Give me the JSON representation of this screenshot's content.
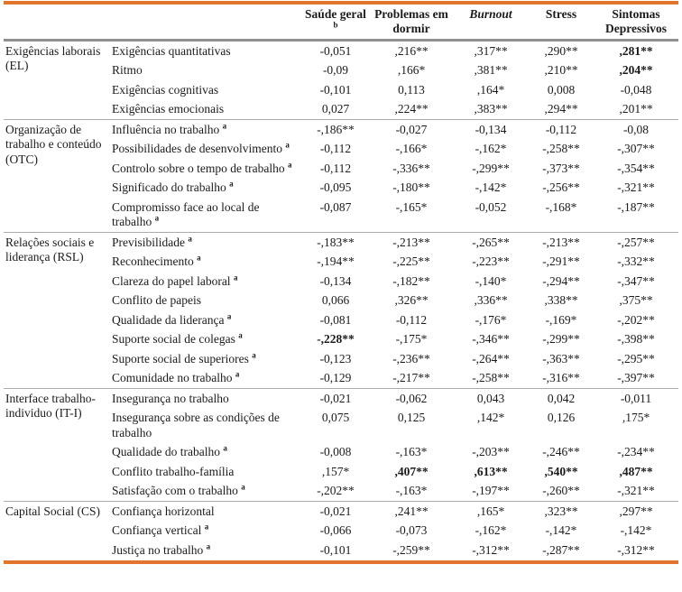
{
  "colors": {
    "accent_rule": "#E2752E",
    "header_rule": "#8f8f8f",
    "group_rule": "#ababab",
    "text": "#1b1b1b"
  },
  "table": {
    "columns": [
      {
        "label": "Saúde geral",
        "sup": "b",
        "italic": false
      },
      {
        "label": "Problemas em dormir",
        "sup": "",
        "italic": false
      },
      {
        "label": "Burnout",
        "sup": "",
        "italic": true
      },
      {
        "label": "Stress",
        "sup": "",
        "italic": false
      },
      {
        "label": "Sintomas Depressivos",
        "sup": "",
        "italic": false
      }
    ],
    "groups": [
      {
        "label": "Exigências laborais (EL)",
        "rows": [
          {
            "label": "Exigências quantitativas",
            "sup": "",
            "values": [
              "-0,051",
              ",216**",
              ",317**",
              ",290**",
              ",281**"
            ],
            "bold": [
              false,
              false,
              false,
              false,
              true
            ]
          },
          {
            "label": "Ritmo",
            "sup": "",
            "values": [
              "-0,09",
              ",166*",
              ",381**",
              ",210**",
              ",204**"
            ],
            "bold": [
              false,
              false,
              false,
              false,
              true
            ]
          },
          {
            "label": "Exigências cognitivas",
            "sup": "",
            "values": [
              "-0,101",
              "0,113",
              ",164*",
              "0,008",
              "-0,048"
            ],
            "bold": [
              false,
              false,
              false,
              false,
              false
            ]
          },
          {
            "label": "Exigências emocionais",
            "sup": "",
            "values": [
              "0,027",
              ",224**",
              ",383**",
              ",294**",
              ",201**"
            ],
            "bold": [
              false,
              false,
              false,
              false,
              false
            ]
          }
        ]
      },
      {
        "label": "Organização de trabalho e conteúdo (OTC)",
        "rows": [
          {
            "label": "Influência no trabalho",
            "sup": "a",
            "values": [
              "-,186**",
              "-0,027",
              "-0,134",
              "-0,112",
              "-0,08"
            ],
            "bold": [
              false,
              false,
              false,
              false,
              false
            ]
          },
          {
            "label": "Possibilidades de desenvolvimento",
            "sup": "a",
            "values": [
              "-0,112",
              "-,166*",
              "-,162*",
              "-,258**",
              "-,307**"
            ],
            "bold": [
              false,
              false,
              false,
              false,
              false
            ]
          },
          {
            "label": "Controlo sobre o tempo de trabalho",
            "sup": "a",
            "values": [
              "-0,112",
              "-,336**",
              "-,299**",
              "-,373**",
              "-,354**"
            ],
            "bold": [
              false,
              false,
              false,
              false,
              false
            ]
          },
          {
            "label": "Significado do trabalho",
            "sup": "a",
            "values": [
              "-0,095",
              "-,180**",
              "-,142*",
              "-,256**",
              "-,321**"
            ],
            "bold": [
              false,
              false,
              false,
              false,
              false
            ]
          },
          {
            "label": "Compromisso face ao local de trabalho",
            "sup": "a",
            "values": [
              "-0,087",
              "-,165*",
              "-0,052",
              "-,168*",
              "-,187**"
            ],
            "bold": [
              false,
              false,
              false,
              false,
              false
            ]
          }
        ]
      },
      {
        "label": "Relações sociais e liderança (RSL)",
        "rows": [
          {
            "label": "Previsibilidade",
            "sup": "a",
            "values": [
              "-,183**",
              "-,213**",
              "-,265**",
              "-,213**",
              "-,257**"
            ],
            "bold": [
              false,
              false,
              false,
              false,
              false
            ]
          },
          {
            "label": "Reconhecimento",
            "sup": "a",
            "values": [
              "-,194**",
              "-,225**",
              "-,223**",
              "-,291**",
              "-,332**"
            ],
            "bold": [
              false,
              false,
              false,
              false,
              false
            ]
          },
          {
            "label": "Clareza do papel laboral",
            "sup": "a",
            "values": [
              "-0,134",
              "-,182**",
              "-,140*",
              "-,294**",
              "-,347**"
            ],
            "bold": [
              false,
              false,
              false,
              false,
              false
            ]
          },
          {
            "label": "Conflito de papeis",
            "sup": "",
            "values": [
              "0,066",
              ",326**",
              ",336**",
              ",338**",
              ",375**"
            ],
            "bold": [
              false,
              false,
              false,
              false,
              false
            ]
          },
          {
            "label": "Qualidade da liderança",
            "sup": "a",
            "values": [
              "-0,081",
              "-0,112",
              "-,176*",
              "-,169*",
              "-,202**"
            ],
            "bold": [
              false,
              false,
              false,
              false,
              false
            ]
          },
          {
            "label": "Suporte social de colegas",
            "sup": "a",
            "values": [
              "-,228**",
              "-,175*",
              "-,346**",
              "-,299**",
              "-,398**"
            ],
            "bold": [
              true,
              false,
              false,
              false,
              false
            ]
          },
          {
            "label": "Suporte social de superiores",
            "sup": "a",
            "values": [
              "-0,123",
              "-,236**",
              "-,264**",
              "-,363**",
              "-,295**"
            ],
            "bold": [
              false,
              false,
              false,
              false,
              false
            ]
          },
          {
            "label": "Comunidade no trabalho",
            "sup": "a",
            "values": [
              "-0,129",
              "-,217**",
              "-,258**",
              "-,316**",
              "-,397**"
            ],
            "bold": [
              false,
              false,
              false,
              false,
              false
            ]
          }
        ]
      },
      {
        "label": "Interface trabalho-individuo (IT-I)",
        "rows": [
          {
            "label": "Insegurança no trabalho",
            "sup": "",
            "values": [
              "-0,021",
              "-0,062",
              "0,043",
              "0,042",
              "-0,011"
            ],
            "bold": [
              false,
              false,
              false,
              false,
              false
            ]
          },
          {
            "label": "Insegurança sobre as condições de trabalho",
            "sup": "",
            "values": [
              "0,075",
              "0,125",
              ",142*",
              "0,126",
              ",175*"
            ],
            "bold": [
              false,
              false,
              false,
              false,
              false
            ]
          },
          {
            "label": "Qualidade do trabalho",
            "sup": "a",
            "values": [
              "-0,008",
              "-,163*",
              "-,203**",
              "-,246**",
              "-,234**"
            ],
            "bold": [
              false,
              false,
              false,
              false,
              false
            ]
          },
          {
            "label": "Conflito trabalho-família",
            "sup": "",
            "values": [
              ",157*",
              ",407**",
              ",613**",
              ",540**",
              ",487**"
            ],
            "bold": [
              false,
              true,
              true,
              true,
              true
            ]
          },
          {
            "label": "Satisfação com o trabalho",
            "sup": "a",
            "values": [
              "-,202**",
              "-,163*",
              "-,197**",
              "-,260**",
              "-,321**"
            ],
            "bold": [
              false,
              false,
              false,
              false,
              false
            ]
          }
        ]
      },
      {
        "label": "Capital Social (CS)",
        "rows": [
          {
            "label": "Confiança horizontal",
            "sup": "",
            "values": [
              "-0,021",
              ",241**",
              ",165*",
              ",323**",
              ",297**"
            ],
            "bold": [
              false,
              false,
              false,
              false,
              false
            ]
          },
          {
            "label": "Confiança vertical",
            "sup": "a",
            "values": [
              "-0,066",
              "-0,073",
              "-,162*",
              "-,142*",
              "-,142*"
            ],
            "bold": [
              false,
              false,
              false,
              false,
              false
            ]
          },
          {
            "label": "Justiça no trabalho",
            "sup": "a",
            "values": [
              "-0,101",
              "-,259**",
              "-,312**",
              "-,287**",
              "-,312**"
            ],
            "bold": [
              false,
              false,
              false,
              false,
              false
            ]
          }
        ]
      }
    ]
  }
}
